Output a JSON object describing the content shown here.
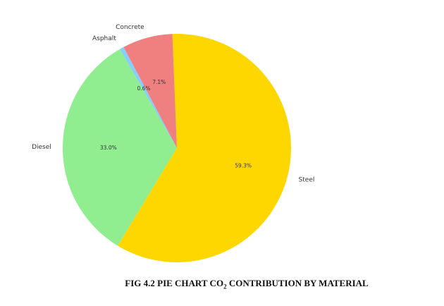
{
  "caption": {
    "prefix": "FIG 4.2 PIE CHART CO",
    "subscript": "2",
    "suffix": " CONTRIBUTION BY MATERIAL"
  },
  "chart_data": {
    "type": "pie",
    "start_angle_deg": 120,
    "direction": "counterclockwise",
    "slices": [
      {
        "label": "Diesel",
        "value": 33.0,
        "pct_label": "33.0%",
        "color": "#90EE90"
      },
      {
        "label": "Steel",
        "value": 59.3,
        "pct_label": "59.3%",
        "color": "#FFD700"
      },
      {
        "label": "Concrete",
        "value": 7.1,
        "pct_label": "7.1%",
        "color": "#F08080"
      },
      {
        "label": "Asphalt",
        "value": 0.6,
        "pct_label": "0.6%",
        "color": "#87CEFA"
      }
    ]
  }
}
